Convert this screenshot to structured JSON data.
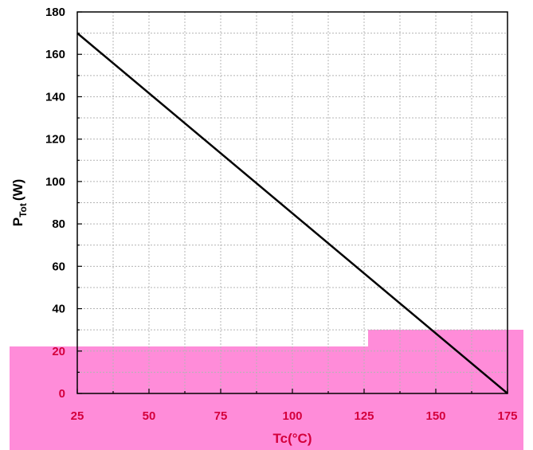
{
  "chart_data": {
    "type": "line",
    "xlabel": "Tc(°C)",
    "ylabel_main": "P",
    "ylabel_sub": "Tot",
    "ylabel_unit": "(W)",
    "xlim": [
      25,
      175
    ],
    "ylim": [
      0,
      180
    ],
    "x_ticks": [
      25,
      50,
      75,
      100,
      125,
      150,
      175
    ],
    "y_ticks": [
      0,
      20,
      40,
      60,
      80,
      100,
      120,
      140,
      160,
      180
    ],
    "x_minor_step": 12.5,
    "y_minor_step": 10,
    "grid": true,
    "series": [
      {
        "x": [
          25,
          175
        ],
        "y": [
          170,
          0
        ]
      }
    ],
    "colors": {
      "line": "#000000",
      "grid": "#b4b4b4",
      "highlight": "#ff66cc",
      "highlight_text": "#d4003c"
    }
  }
}
